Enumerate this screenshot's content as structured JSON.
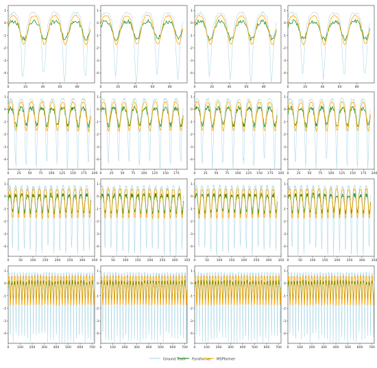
{
  "figure": {
    "legend": {
      "placement": "bottom-center",
      "entries": [
        {
          "label": "Ground Truth",
          "color": "#add8e6"
        },
        {
          "label": "Pyraformer",
          "color": "#228b22"
        },
        {
          "label": "MSPformer",
          "color": "#ffa500"
        }
      ]
    }
  },
  "chart_data": [
    {
      "type": "line",
      "row": 1,
      "col": 1,
      "horizon": 96,
      "xlim": [
        0,
        100
      ],
      "xticks": [
        0,
        20,
        40,
        60,
        80
      ],
      "ylim": [
        -4.8,
        1.4
      ],
      "yticks": [
        1,
        0,
        -1,
        -2,
        -3,
        -4
      ],
      "series": [
        {
          "name": "Ground Truth",
          "color": "#add8e6"
        },
        {
          "name": "Pyraformer",
          "color": "#228b22"
        },
        {
          "name": "MSPformer",
          "color": "#ffa500"
        }
      ]
    },
    {
      "type": "line",
      "row": 1,
      "col": 2,
      "horizon": 96,
      "xlim": [
        0,
        100
      ],
      "xticks": [
        0,
        20,
        40,
        60,
        80
      ],
      "ylim": [
        -4.8,
        1.4
      ],
      "yticks": [
        1,
        0,
        -1,
        -2,
        -3,
        -4
      ],
      "series": [
        {
          "name": "Ground Truth",
          "color": "#add8e6"
        },
        {
          "name": "Pyraformer",
          "color": "#228b22"
        },
        {
          "name": "MSPformer",
          "color": "#ffa500"
        }
      ]
    },
    {
      "type": "line",
      "row": 1,
      "col": 3,
      "horizon": 96,
      "xlim": [
        0,
        100
      ],
      "xticks": [
        0,
        20,
        40,
        60,
        80
      ],
      "ylim": [
        -4.8,
        1.4
      ],
      "yticks": [
        1,
        0,
        -1,
        -2,
        -3,
        -4
      ],
      "series": [
        {
          "name": "Ground Truth",
          "color": "#add8e6"
        },
        {
          "name": "Pyraformer",
          "color": "#228b22"
        },
        {
          "name": "MSPformer",
          "color": "#ffa500"
        }
      ]
    },
    {
      "type": "line",
      "row": 1,
      "col": 4,
      "horizon": 96,
      "xlim": [
        0,
        100
      ],
      "xticks": [
        0,
        20,
        40,
        60,
        80
      ],
      "ylim": [
        -4.8,
        1.4
      ],
      "yticks": [
        1,
        0,
        -1,
        -2,
        -3,
        -4
      ],
      "series": [
        {
          "name": "Ground Truth",
          "color": "#add8e6"
        },
        {
          "name": "Pyraformer",
          "color": "#228b22"
        },
        {
          "name": "MSPformer",
          "color": "#ffa500"
        }
      ]
    },
    {
      "type": "line",
      "row": 2,
      "col": 1,
      "horizon": 192,
      "xlim": [
        0,
        200
      ],
      "xticks": [
        0,
        25,
        50,
        75,
        100,
        125,
        150,
        175,
        200
      ],
      "ylim": [
        -4.8,
        1.4
      ],
      "yticks": [
        1,
        0,
        -1,
        -2,
        -3,
        -4
      ],
      "series": [
        {
          "name": "Ground Truth",
          "color": "#add8e6"
        },
        {
          "name": "Pyraformer",
          "color": "#228b22"
        },
        {
          "name": "MSPformer",
          "color": "#ffa500"
        }
      ]
    },
    {
      "type": "line",
      "row": 2,
      "col": 2,
      "horizon": 192,
      "xlim": [
        0,
        200
      ],
      "xticks": [
        0,
        25,
        50,
        75,
        100,
        125,
        150,
        175
      ],
      "ylim": [
        -4.8,
        1.4
      ],
      "yticks": [
        1,
        0,
        -1,
        -2,
        -3,
        -4
      ],
      "series": [
        {
          "name": "Ground Truth",
          "color": "#add8e6"
        },
        {
          "name": "Pyraformer",
          "color": "#228b22"
        },
        {
          "name": "MSPformer",
          "color": "#ffa500"
        }
      ]
    },
    {
      "type": "line",
      "row": 2,
      "col": 3,
      "horizon": 192,
      "xlim": [
        0,
        200
      ],
      "xticks": [
        0,
        25,
        50,
        75,
        100,
        125,
        150,
        175,
        200
      ],
      "ylim": [
        -4.8,
        1.4
      ],
      "yticks": [
        1,
        0,
        -1,
        -2,
        -3,
        -4
      ],
      "series": [
        {
          "name": "Ground Truth",
          "color": "#add8e6"
        },
        {
          "name": "Pyraformer",
          "color": "#228b22"
        },
        {
          "name": "MSPformer",
          "color": "#ffa500"
        }
      ]
    },
    {
      "type": "line",
      "row": 2,
      "col": 4,
      "horizon": 192,
      "xlim": [
        0,
        200
      ],
      "xticks": [
        0,
        25,
        50,
        75,
        100,
        125,
        150,
        175,
        200
      ],
      "ylim": [
        -4.8,
        1.4
      ],
      "yticks": [
        1,
        0,
        -1,
        -2,
        -3,
        -4
      ],
      "series": [
        {
          "name": "Ground Truth",
          "color": "#add8e6"
        },
        {
          "name": "Pyraformer",
          "color": "#228b22"
        },
        {
          "name": "MSPformer",
          "color": "#ffa500"
        }
      ]
    },
    {
      "type": "line",
      "row": 3,
      "col": 1,
      "horizon": 336,
      "xlim": [
        0,
        350
      ],
      "xticks": [
        0,
        50,
        100,
        150,
        200,
        250,
        300,
        350
      ],
      "ylim": [
        -4.8,
        1.4
      ],
      "yticks": [
        1,
        0,
        -1,
        -2,
        -3,
        -4
      ],
      "series": [
        {
          "name": "Ground Truth",
          "color": "#add8e6"
        },
        {
          "name": "Pyraformer",
          "color": "#228b22"
        },
        {
          "name": "MSPformer",
          "color": "#ffa500"
        }
      ]
    },
    {
      "type": "line",
      "row": 3,
      "col": 2,
      "horizon": 336,
      "xlim": [
        0,
        350
      ],
      "xticks": [
        0,
        50,
        100,
        150,
        200,
        250,
        300,
        350
      ],
      "ylim": [
        -4.8,
        1.4
      ],
      "yticks": [
        1,
        0,
        -1,
        -2,
        -3,
        -4
      ],
      "series": [
        {
          "name": "Ground Truth",
          "color": "#add8e6"
        },
        {
          "name": "Pyraformer",
          "color": "#228b22"
        },
        {
          "name": "MSPformer",
          "color": "#ffa500"
        }
      ]
    },
    {
      "type": "line",
      "row": 3,
      "col": 3,
      "horizon": 336,
      "xlim": [
        0,
        350
      ],
      "xticks": [
        0,
        50,
        100,
        150,
        200,
        250,
        300,
        350
      ],
      "ylim": [
        -4.8,
        1.4
      ],
      "yticks": [
        1,
        0,
        -1,
        -2,
        -3,
        -4
      ],
      "series": [
        {
          "name": "Ground Truth",
          "color": "#add8e6"
        },
        {
          "name": "Pyraformer",
          "color": "#228b22"
        },
        {
          "name": "MSPformer",
          "color": "#ffa500"
        }
      ]
    },
    {
      "type": "line",
      "row": 3,
      "col": 4,
      "horizon": 336,
      "xlim": [
        0,
        350
      ],
      "xticks": [
        0,
        50,
        100,
        150,
        200,
        250,
        300,
        350
      ],
      "ylim": [
        -4.8,
        1.4
      ],
      "yticks": [
        1,
        0,
        -1,
        -2,
        -3,
        -4
      ],
      "series": [
        {
          "name": "Ground Truth",
          "color": "#add8e6"
        },
        {
          "name": "Pyraformer",
          "color": "#228b22"
        },
        {
          "name": "MSPformer",
          "color": "#ffa500"
        }
      ]
    },
    {
      "type": "line",
      "row": 4,
      "col": 1,
      "horizon": 720,
      "xlim": [
        0,
        720
      ],
      "xticks": [
        0,
        100,
        200,
        300,
        400,
        500,
        600,
        700
      ],
      "ylim": [
        -4.8,
        1.4
      ],
      "yticks": [
        1,
        0,
        -1,
        -2,
        -3,
        -4
      ],
      "series": [
        {
          "name": "Ground Truth",
          "color": "#add8e6"
        },
        {
          "name": "Pyraformer",
          "color": "#228b22"
        },
        {
          "name": "MSPformer",
          "color": "#ffa500"
        }
      ]
    },
    {
      "type": "line",
      "row": 4,
      "col": 2,
      "horizon": 720,
      "xlim": [
        0,
        720
      ],
      "xticks": [
        0,
        100,
        200,
        300,
        400,
        500,
        600,
        700
      ],
      "ylim": [
        -4.8,
        1.4
      ],
      "yticks": [
        1,
        0,
        -1,
        -2,
        -3,
        -4
      ],
      "series": [
        {
          "name": "Ground Truth",
          "color": "#add8e6"
        },
        {
          "name": "Pyraformer",
          "color": "#228b22"
        },
        {
          "name": "MSPformer",
          "color": "#ffa500"
        }
      ]
    },
    {
      "type": "line",
      "row": 4,
      "col": 3,
      "horizon": 720,
      "xlim": [
        0,
        720
      ],
      "xticks": [
        0,
        100,
        200,
        300,
        400,
        500,
        600,
        700
      ],
      "ylim": [
        -4.8,
        1.4
      ],
      "yticks": [
        1,
        0,
        -1,
        -2,
        -3,
        -4
      ],
      "series": [
        {
          "name": "Ground Truth",
          "color": "#add8e6"
        },
        {
          "name": "Pyraformer",
          "color": "#228b22"
        },
        {
          "name": "MSPformer",
          "color": "#ffa500"
        }
      ]
    },
    {
      "type": "line",
      "row": 4,
      "col": 4,
      "horizon": 720,
      "xlim": [
        0,
        720
      ],
      "xticks": [
        0,
        100,
        200,
        300,
        400,
        500,
        600,
        700
      ],
      "ylim": [
        -4.8,
        1.4
      ],
      "yticks": [
        1,
        0,
        -1,
        -2,
        -3,
        -4
      ],
      "series": [
        {
          "name": "Ground Truth",
          "color": "#add8e6"
        },
        {
          "name": "Pyraformer",
          "color": "#228b22"
        },
        {
          "name": "MSPformer",
          "color": "#ffa500"
        }
      ]
    }
  ]
}
